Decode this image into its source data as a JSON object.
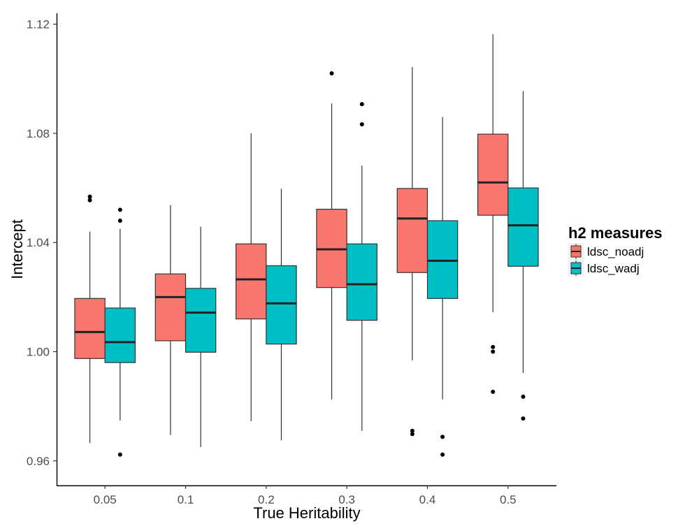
{
  "chart_data": {
    "type": "boxplot",
    "xlabel": "True Heritability",
    "ylabel": "Intercept",
    "categories": [
      "0.05",
      "0.1",
      "0.2",
      "0.3",
      "0.4",
      "0.5"
    ],
    "ylim": [
      0.951,
      1.124
    ],
    "yticks": [
      0.96,
      1.0,
      1.04,
      1.08,
      1.12
    ],
    "ytick_labels": [
      "0.96",
      "1.00",
      "1.04",
      "1.08",
      "1.12"
    ],
    "grid": false,
    "legend": {
      "title": "h2 measures",
      "position": "right"
    },
    "series": [
      {
        "name": "ldsc_noadj",
        "color": "#F8766D",
        "boxes": [
          {
            "whisker_low": 0.9665,
            "q1": 0.9975,
            "median": 1.0072,
            "q3": 1.0195,
            "whisker_high": 1.044,
            "outliers": [
              1.0555,
              1.0568
            ]
          },
          {
            "whisker_low": 0.9695,
            "q1": 1.004,
            "median": 1.02,
            "q3": 1.0285,
            "whisker_high": 1.0537,
            "outliers": []
          },
          {
            "whisker_low": 0.9745,
            "q1": 1.012,
            "median": 1.0265,
            "q3": 1.0395,
            "whisker_high": 1.08,
            "outliers": []
          },
          {
            "whisker_low": 0.9825,
            "q1": 1.0235,
            "median": 1.0375,
            "q3": 1.0522,
            "whisker_high": 1.091,
            "outliers": [
              1.102
            ]
          },
          {
            "whisker_low": 0.9968,
            "q1": 1.029,
            "median": 1.0488,
            "q3": 1.0598,
            "whisker_high": 1.1043,
            "outliers": [
              0.9698,
              0.971
            ]
          },
          {
            "whisker_low": 1.0145,
            "q1": 1.05,
            "median": 1.062,
            "q3": 1.0797,
            "whisker_high": 1.1163,
            "outliers": [
              0.9853,
              1.0,
              1.0017
            ]
          }
        ]
      },
      {
        "name": "ldsc_wadj",
        "color": "#00BFC4",
        "boxes": [
          {
            "whisker_low": 0.9748,
            "q1": 0.996,
            "median": 1.0035,
            "q3": 1.016,
            "whisker_high": 1.045,
            "outliers": [
              0.9623,
              1.048,
              1.052
            ]
          },
          {
            "whisker_low": 0.965,
            "q1": 0.9998,
            "median": 1.0143,
            "q3": 1.0232,
            "whisker_high": 1.0458,
            "outliers": []
          },
          {
            "whisker_low": 0.9675,
            "q1": 1.0028,
            "median": 1.0177,
            "q3": 1.0315,
            "whisker_high": 1.0597,
            "outliers": []
          },
          {
            "whisker_low": 0.971,
            "q1": 1.0115,
            "median": 1.0247,
            "q3": 1.0395,
            "whisker_high": 1.0682,
            "outliers": [
              1.0833,
              1.0907
            ]
          },
          {
            "whisker_low": 0.9825,
            "q1": 1.0195,
            "median": 1.0333,
            "q3": 1.048,
            "whisker_high": 1.086,
            "outliers": [
              0.9623,
              0.9688
            ]
          },
          {
            "whisker_low": 0.9922,
            "q1": 1.0313,
            "median": 1.0463,
            "q3": 1.06,
            "whisker_high": 1.0955,
            "outliers": [
              0.9755,
              0.9835
            ]
          }
        ]
      }
    ]
  }
}
